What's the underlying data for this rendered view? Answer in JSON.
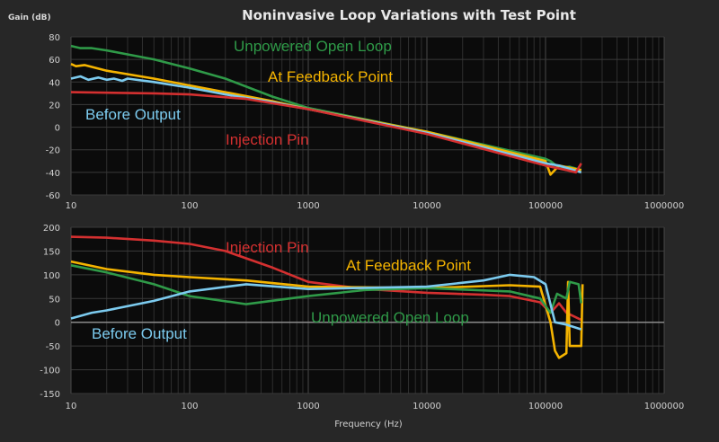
{
  "chart_data": [
    {
      "type": "line",
      "title": "Noninvasive Loop Variations with Test Point",
      "ylabel": "Gain (dB)",
      "xlabel": "",
      "xscale": "log",
      "xlim": [
        10,
        1000000
      ],
      "ylim": [
        -60,
        80
      ],
      "yticks": [
        80,
        60,
        40,
        20,
        0,
        -20,
        -40,
        -60
      ],
      "xticks": [
        "10",
        "100",
        "1000",
        "10000",
        "100000",
        "1000000"
      ],
      "grid": true,
      "series": [
        {
          "name": "Unpowered Open Loop",
          "color": "#2f9a48",
          "x": [
            10,
            12,
            15,
            20,
            50,
            100,
            200,
            500,
            1000,
            10000,
            100000,
            110000,
            130000,
            160000,
            200000
          ],
          "y": [
            72,
            70,
            70,
            68,
            60,
            52,
            43,
            27,
            17,
            -4,
            -28,
            -30,
            -36,
            -35,
            -38
          ]
        },
        {
          "name": "At Feedback Point",
          "color": "#f5b400",
          "x": [
            10,
            11,
            13,
            20,
            50,
            100,
            200,
            500,
            1000,
            10000,
            100000,
            110000,
            130000,
            160000,
            200000
          ],
          "y": [
            56,
            54,
            55,
            50,
            43,
            37,
            31,
            23,
            16,
            -4,
            -30,
            -42,
            -34,
            -36,
            -38
          ]
        },
        {
          "name": "Before Output",
          "color": "#7ccbef",
          "x": [
            10,
            12,
            14,
            17,
            20,
            23,
            27,
            30,
            50,
            100,
            200,
            500,
            1000,
            10000,
            100000,
            130000,
            200000
          ],
          "y": [
            43,
            45,
            42,
            44,
            42,
            43,
            41,
            43,
            40,
            35,
            29,
            22,
            16,
            -5,
            -32,
            -34,
            -40
          ]
        },
        {
          "name": "Injection Pin",
          "color": "#d43030",
          "x": [
            10,
            50,
            100,
            300,
            1000,
            10000,
            100000,
            150000,
            180000,
            200000
          ],
          "y": [
            31,
            30,
            29,
            25,
            16,
            -6,
            -34,
            -38,
            -40,
            -32
          ]
        }
      ]
    },
    {
      "type": "line",
      "xlabel": "Frequency (Hz)",
      "ylabel": "",
      "xscale": "log",
      "xlim": [
        10,
        1000000
      ],
      "ylim": [
        -150,
        200
      ],
      "yticks": [
        200,
        150,
        100,
        50,
        0,
        -50,
        -100,
        -150
      ],
      "xticks": [
        "10",
        "100",
        "1000",
        "10000",
        "100000",
        "1000000"
      ],
      "grid": true,
      "series": [
        {
          "name": "Injection Pin",
          "color": "#d43030",
          "x": [
            10,
            20,
            50,
            100,
            200,
            500,
            1000,
            3000,
            10000,
            30000,
            50000,
            90000,
            110000,
            130000,
            150000,
            200000
          ],
          "y": [
            180,
            178,
            172,
            165,
            150,
            115,
            85,
            70,
            62,
            58,
            55,
            42,
            20,
            40,
            20,
            5
          ]
        },
        {
          "name": "At Feedback Point",
          "color": "#f5b400",
          "x": [
            10,
            20,
            50,
            100,
            300,
            1000,
            10000,
            50000,
            90000,
            110000,
            120000,
            130000,
            150000,
            155000,
            160000,
            200000,
            205000
          ],
          "y": [
            128,
            112,
            100,
            95,
            88,
            75,
            72,
            78,
            75,
            0,
            -60,
            -75,
            -65,
            85,
            -50,
            -50,
            80
          ]
        },
        {
          "name": "Unpowered Open Loop",
          "color": "#2f9a48",
          "x": [
            10,
            20,
            50,
            100,
            300,
            1000,
            3000,
            10000,
            50000,
            90000,
            110000,
            125000,
            150000,
            160000,
            190000,
            200000
          ],
          "y": [
            120,
            105,
            80,
            55,
            38,
            55,
            68,
            72,
            65,
            50,
            20,
            60,
            50,
            85,
            80,
            40
          ]
        },
        {
          "name": "Before Output",
          "color": "#7ccbef",
          "x": [
            10,
            15,
            20,
            50,
            100,
            300,
            1000,
            10000,
            30000,
            50000,
            80000,
            100000,
            120000,
            150000,
            200000
          ],
          "y": [
            8,
            20,
            25,
            45,
            65,
            80,
            70,
            75,
            88,
            100,
            95,
            80,
            0,
            -5,
            -15
          ]
        }
      ]
    }
  ]
}
